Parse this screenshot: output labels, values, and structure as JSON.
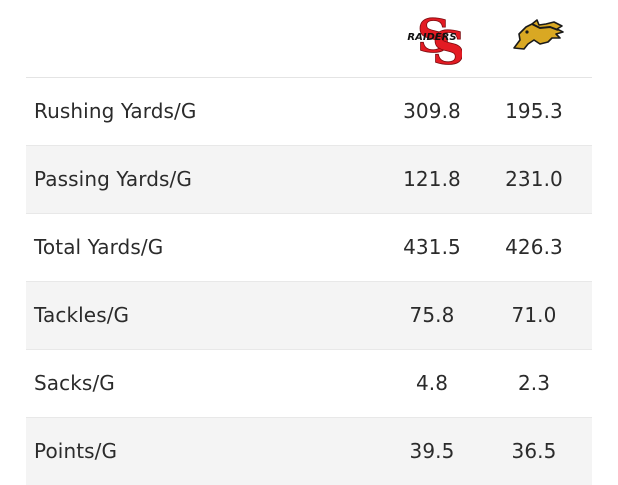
{
  "colors": {
    "row_shade": "#f4f4f4",
    "divider": "#e8e8e8",
    "text": "#2b2b2b",
    "raiders_red": "#e31b23",
    "mustang_gold": "#d9a823"
  },
  "teams": {
    "home": {
      "logo_text": "RAIDERS",
      "logo_icon": "raiders-ss-logo-icon"
    },
    "away": {
      "logo_icon": "mustang-horse-logo-icon"
    }
  },
  "stats": [
    {
      "label": "Rushing Yards/G",
      "home": "309.8",
      "away": "195.3"
    },
    {
      "label": "Passing Yards/G",
      "home": "121.8",
      "away": "231.0"
    },
    {
      "label": "Total Yards/G",
      "home": "431.5",
      "away": "426.3"
    },
    {
      "label": "Tackles/G",
      "home": "75.8",
      "away": "71.0"
    },
    {
      "label": "Sacks/G",
      "home": "4.8",
      "away": "2.3"
    },
    {
      "label": "Points/G",
      "home": "39.5",
      "away": "36.5"
    }
  ]
}
